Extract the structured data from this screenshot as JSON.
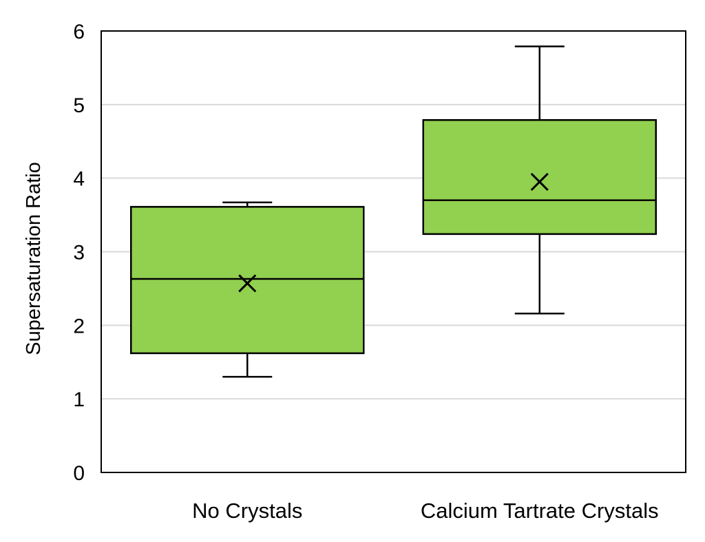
{
  "chart_data": {
    "type": "box",
    "title": "",
    "xlabel": "",
    "ylabel": "Supersaturation Ratio",
    "ylim": [
      0,
      6
    ],
    "yticks": [
      "0",
      "1",
      "2",
      "3",
      "4",
      "5",
      "6"
    ],
    "grid": true,
    "legend": "none",
    "box_color": "#92d050",
    "categories": [
      "No Crystals",
      "Calcium Tartrate Crystals"
    ],
    "boxes": [
      {
        "category": "No Crystals",
        "min": 1.3,
        "q1": 1.62,
        "median": 2.63,
        "q3": 3.61,
        "max": 3.67,
        "mean": 2.57
      },
      {
        "category": "Calcium Tartrate Crystals",
        "min": 2.16,
        "q1": 3.24,
        "median": 3.7,
        "q3": 4.79,
        "max": 5.79,
        "mean": 3.95
      }
    ]
  }
}
